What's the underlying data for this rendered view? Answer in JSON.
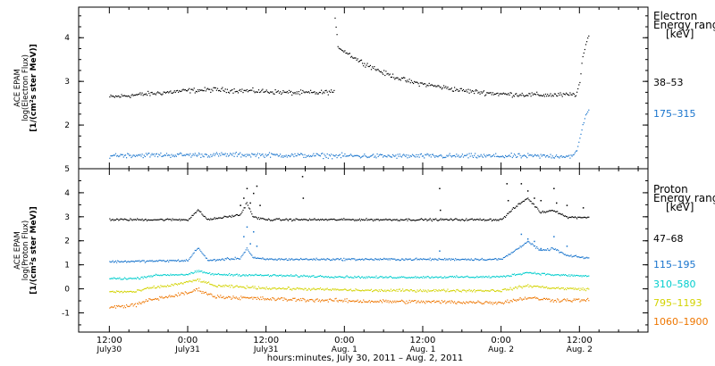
{
  "chart_data": [
    {
      "type": "scatter",
      "panel": "electron",
      "ylabel_lines": [
        "ACE EPAM",
        "log(Electron Flux)",
        "[1/(cm²s ster MeV)]"
      ],
      "yticks": [
        "2",
        "3",
        "4"
      ],
      "ylim": [
        1.0,
        4.7
      ],
      "legend_title_lines": [
        "Electron",
        "Energy ranges",
        "[keV]"
      ],
      "series": [
        {
          "name": "38–53",
          "color": "#000000",
          "noise": 0.05,
          "profile": [
            [
              0,
              2.65
            ],
            [
              4,
              2.7
            ],
            [
              8,
              2.75
            ],
            [
              12,
              2.8
            ],
            [
              16,
              2.82
            ],
            [
              20,
              2.8
            ],
            [
              24,
              2.78
            ],
            [
              28,
              2.75
            ],
            [
              32,
              2.75
            ],
            [
              34.4,
              2.78
            ],
            [
              34.5,
              4.4
            ],
            [
              35,
              3.8
            ],
            [
              38,
              3.5
            ],
            [
              42,
              3.2
            ],
            [
              46,
              3.0
            ],
            [
              50,
              2.9
            ],
            [
              54,
              2.8
            ],
            [
              60,
              2.72
            ],
            [
              66,
              2.7
            ],
            [
              70,
              2.7
            ],
            [
              71.5,
              2.72
            ],
            [
              72,
              3.0
            ],
            [
              72.5,
              3.6
            ],
            [
              73,
              3.9
            ],
            [
              73.4,
              4.05
            ]
          ]
        },
        {
          "name": "175–315",
          "color": "#1874cd",
          "noise": 0.05,
          "profile": [
            [
              0,
              1.32
            ],
            [
              20,
              1.33
            ],
            [
              40,
              1.3
            ],
            [
              60,
              1.3
            ],
            [
              71,
              1.3
            ],
            [
              71.5,
              1.4
            ],
            [
              72,
              1.7
            ],
            [
              72.6,
              2.1
            ],
            [
              73.2,
              2.35
            ],
            [
              73.4,
              2.4
            ]
          ]
        }
      ]
    },
    {
      "type": "scatter",
      "panel": "proton",
      "ylabel_lines": [
        "ACE EPAM",
        "log(Proton Flux)",
        "[1/(cm²s ster MeV)]"
      ],
      "yticks": [
        "-1",
        "0",
        "1",
        "2",
        "3",
        "4",
        "5"
      ],
      "ylim": [
        -1.8,
        5.0
      ],
      "legend_title_lines": [
        "Proton",
        "Energy ranges",
        "[keV]"
      ],
      "series": [
        {
          "name": "47–68",
          "color": "#000000",
          "noise": 0.04,
          "profile": [
            [
              0,
              2.9
            ],
            [
              12,
              2.9
            ],
            [
              13.5,
              3.3
            ],
            [
              15,
              2.9
            ],
            [
              20,
              3.1
            ],
            [
              21,
              3.6
            ],
            [
              22,
              3.0
            ],
            [
              24,
              2.9
            ],
            [
              60,
              2.9
            ],
            [
              62,
              3.4
            ],
            [
              64,
              3.8
            ],
            [
              66,
              3.2
            ],
            [
              68,
              3.3
            ],
            [
              70,
              3.0
            ],
            [
              73.4,
              3.0
            ]
          ],
          "spikes": [
            [
              20,
              3.5
            ],
            [
              20.5,
              3.8
            ],
            [
              21,
              4.2
            ],
            [
              21.5,
              3.6
            ],
            [
              22,
              4.0
            ],
            [
              22.5,
              4.3
            ],
            [
              23,
              3.5
            ],
            [
              29.5,
              4.7
            ],
            [
              29.6,
              3.8
            ],
            [
              50.5,
              4.2
            ],
            [
              50.6,
              3.3
            ],
            [
              60.8,
              4.4
            ],
            [
              61,
              3.7
            ],
            [
              63,
              4.4
            ],
            [
              64,
              4.1
            ],
            [
              65,
              3.8
            ],
            [
              66,
              3.7
            ],
            [
              68,
              4.2
            ],
            [
              68.4,
              3.6
            ],
            [
              70,
              3.5
            ],
            [
              72.5,
              3.4
            ]
          ]
        },
        {
          "name": "115–195",
          "color": "#1874cd",
          "noise": 0.04,
          "profile": [
            [
              0,
              1.15
            ],
            [
              12,
              1.2
            ],
            [
              13.5,
              1.75
            ],
            [
              15,
              1.2
            ],
            [
              20,
              1.3
            ],
            [
              21,
              1.7
            ],
            [
              22,
              1.3
            ],
            [
              24,
              1.25
            ],
            [
              60,
              1.25
            ],
            [
              62,
              1.6
            ],
            [
              64,
              2.0
            ],
            [
              66,
              1.6
            ],
            [
              68,
              1.7
            ],
            [
              70,
              1.4
            ],
            [
              73.4,
              1.3
            ]
          ],
          "spikes": [
            [
              20.5,
              2.2
            ],
            [
              21,
              2.6
            ],
            [
              21.5,
              1.9
            ],
            [
              22,
              2.4
            ],
            [
              22.5,
              1.8
            ],
            [
              50.5,
              1.6
            ],
            [
              63,
              2.3
            ],
            [
              64,
              2.1
            ],
            [
              65,
              2.0
            ],
            [
              66,
              1.7
            ],
            [
              68,
              2.2
            ],
            [
              70,
              1.8
            ]
          ]
        },
        {
          "name": "310–580",
          "color": "#00cdcd",
          "noise": 0.04,
          "profile": [
            [
              0,
              0.45
            ],
            [
              4,
              0.45
            ],
            [
              6,
              0.55
            ],
            [
              8,
              0.6
            ],
            [
              12,
              0.62
            ],
            [
              13.5,
              0.75
            ],
            [
              16,
              0.62
            ],
            [
              24,
              0.58
            ],
            [
              40,
              0.5
            ],
            [
              60,
              0.52
            ],
            [
              64,
              0.7
            ],
            [
              68,
              0.6
            ],
            [
              73.4,
              0.55
            ]
          ]
        },
        {
          "name": "795–1193",
          "color": "#d3d300",
          "noise": 0.05,
          "profile": [
            [
              0,
              -0.1
            ],
            [
              4,
              -0.1
            ],
            [
              6,
              0.05
            ],
            [
              9,
              0.15
            ],
            [
              12,
              0.3
            ],
            [
              13.5,
              0.4
            ],
            [
              16,
              0.15
            ],
            [
              24,
              0.05
            ],
            [
              40,
              -0.05
            ],
            [
              60,
              -0.05
            ],
            [
              64,
              0.15
            ],
            [
              68,
              0.05
            ],
            [
              73.4,
              0.0
            ]
          ]
        },
        {
          "name": "1060–1900",
          "color": "#ee7600",
          "noise": 0.07,
          "profile": [
            [
              0,
              -0.75
            ],
            [
              4,
              -0.65
            ],
            [
              6,
              -0.45
            ],
            [
              9,
              -0.3
            ],
            [
              12,
              -0.15
            ],
            [
              13.5,
              0.0
            ],
            [
              16,
              -0.3
            ],
            [
              24,
              -0.4
            ],
            [
              40,
              -0.5
            ],
            [
              60,
              -0.55
            ],
            [
              64,
              -0.35
            ],
            [
              68,
              -0.45
            ],
            [
              73.4,
              -0.45
            ]
          ]
        }
      ]
    }
  ],
  "x_axis": {
    "title": "hours:minutes, July 30, 2011 – Aug. 2, 2011",
    "xlim_hours": [
      -4.7,
      82.5
    ],
    "ticks": [
      {
        "h": 0,
        "time": "12:00",
        "date": "July30"
      },
      {
        "h": 12,
        "time": "0:00",
        "date": "July31"
      },
      {
        "h": 24,
        "time": "12:00",
        "date": "July31"
      },
      {
        "h": 36,
        "time": "0:00",
        "date": "Aug. 1"
      },
      {
        "h": 48,
        "time": "12:00",
        "date": "Aug. 1"
      },
      {
        "h": 60,
        "time": "0:00",
        "date": "Aug. 2"
      },
      {
        "h": 72,
        "time": "12:00",
        "date": "Aug. 2"
      }
    ]
  }
}
